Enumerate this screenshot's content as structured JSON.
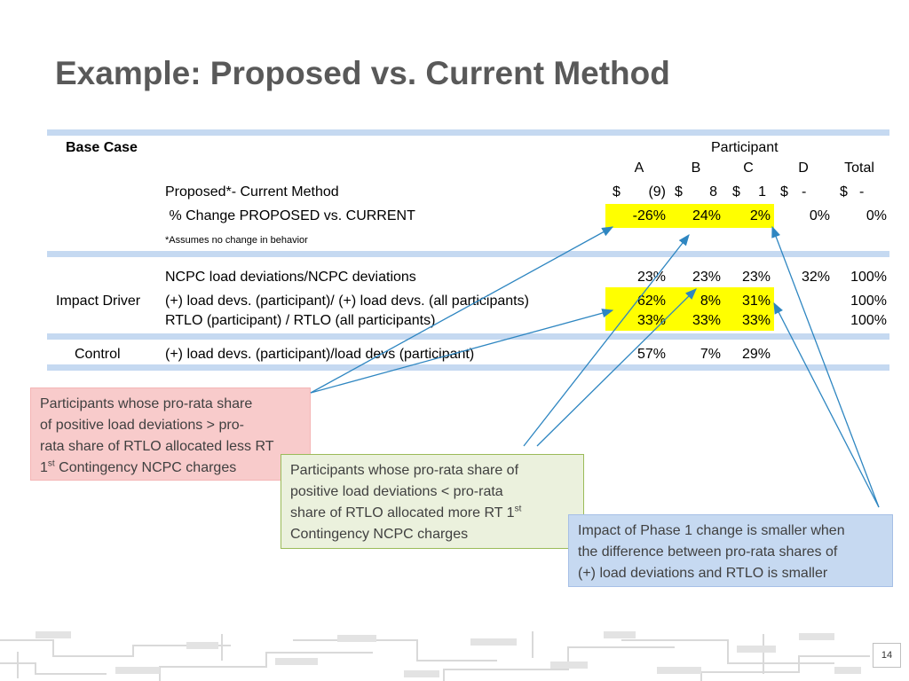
{
  "title": "Example: Proposed  vs. Current Method",
  "table": {
    "base_case_label": "Base Case",
    "participant_header": "Participant",
    "columns": [
      "A",
      "B",
      "C",
      "D",
      "Total"
    ],
    "proposed_row": {
      "label": "Proposed*- Current Method",
      "cells": [
        {
          "cur": "$",
          "val": "(9)"
        },
        {
          "cur": "$",
          "val": "8"
        },
        {
          "cur": "$",
          "val": "1"
        },
        {
          "cur": "$",
          "val": "-"
        },
        {
          "cur": "$",
          "val": "-"
        }
      ]
    },
    "pct_row": {
      "label": " % Change PROPOSED vs. CURRENT",
      "values": [
        "-26%",
        "24%",
        "2%",
        "0%",
        "0%"
      ]
    },
    "footnote": "*Assumes no change in behavior",
    "impact_driver_label": "Impact Driver",
    "impact_rows": [
      {
        "label": "NCPC load deviations/NCPC deviations",
        "values": [
          "23%",
          "23%",
          "23%",
          "32%",
          "100%"
        ]
      },
      {
        "label": "(+) load devs. (participant)/ (+) load devs. (all participants)",
        "values": [
          "62%",
          "8%",
          "31%",
          "",
          "100%"
        ]
      },
      {
        "label": "RTLO (participant) / RTLO (all participants)",
        "values": [
          "33%",
          "33%",
          "33%",
          "",
          "100%"
        ]
      }
    ],
    "control_label": "Control",
    "control_row": {
      "label": "(+) load devs. (participant)/load devs (participant)",
      "values": [
        "57%",
        "7%",
        "29%",
        "",
        ""
      ]
    }
  },
  "callouts": {
    "pink": {
      "line1": "Participants  whose pro-rata  share",
      "line2": "of positive load deviations  >  pro-",
      "line3": "rata share of RTLO allocated less RT",
      "line4_pre": "1",
      "line4_sup": "st",
      "line4_post": " Contingency NCPC charges"
    },
    "green": {
      "line1": "Participants  whose pro-rata  share of",
      "line2": "positive  load deviations < pro-rata",
      "line3_pre": "share of RTLO allocated more RT 1",
      "line3_sup": "st",
      "line4": "Contingency NCPC charges"
    },
    "blue": {
      "line1": "Impact of Phase 1 change is smaller when",
      "line2": "the difference between  pro-rata shares of",
      "line3": "(+) load deviations and RTLO is smaller"
    }
  },
  "page_number": "14",
  "colors": {
    "title": "#595959",
    "band": "#c5d9f1",
    "highlight": "#ffff00",
    "arrow": "#2e86c1"
  }
}
